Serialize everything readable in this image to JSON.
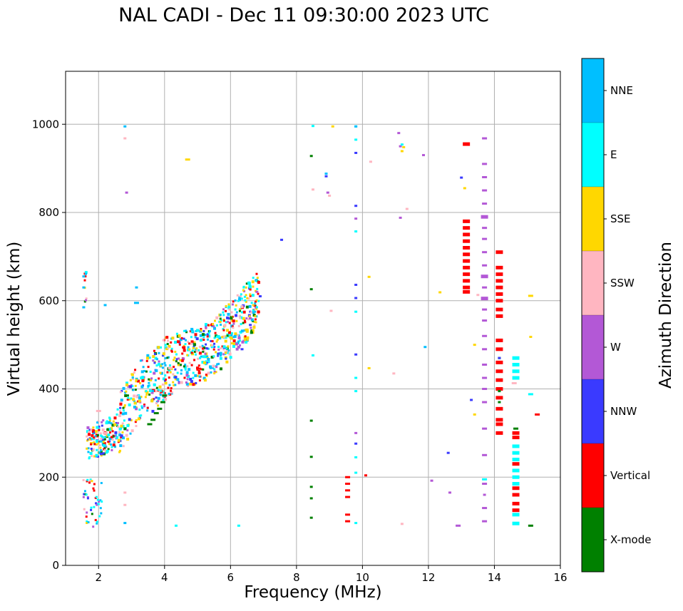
{
  "chart_data": {
    "type": "scatter",
    "title": "NAL CADI - Dec 11 09:30:00 2023 UTC",
    "xlabel": "Frequency (MHz)",
    "ylabel": "Virtual height (km)",
    "xlim": [
      1,
      16
    ],
    "ylim": [
      0,
      1120
    ],
    "xticks": [
      2,
      4,
      6,
      8,
      10,
      12,
      14,
      16
    ],
    "yticks": [
      0,
      200,
      400,
      600,
      800,
      1000
    ],
    "grid": true,
    "colorbar": {
      "label": "Azimuth Direction",
      "categories": [
        "X-mode",
        "Vertical",
        "NNW",
        "W",
        "SSW",
        "SSE",
        "E",
        "NNE"
      ],
      "colors": [
        "#008000",
        "#ff0000",
        "#3a3aff",
        "#b358d6",
        "#ffb6c1",
        "#ffd700",
        "#00ffff",
        "#00bfff"
      ]
    },
    "series": [
      {
        "name": "Vertical",
        "color": "#ff0000",
        "points": [
          [
            13.15,
            955,
            3
          ],
          [
            13.15,
            780,
            3
          ],
          [
            13.15,
            765,
            3
          ],
          [
            13.15,
            750,
            3
          ],
          [
            13.15,
            735,
            3
          ],
          [
            13.15,
            720,
            3
          ],
          [
            13.15,
            705,
            3
          ],
          [
            13.15,
            690,
            3
          ],
          [
            13.15,
            675,
            3
          ],
          [
            13.15,
            660,
            3
          ],
          [
            13.15,
            645,
            3
          ],
          [
            13.15,
            630,
            3
          ],
          [
            13.15,
            620,
            3
          ],
          [
            14.15,
            710,
            3
          ],
          [
            14.15,
            675,
            3
          ],
          [
            14.15,
            660,
            3
          ],
          [
            14.15,
            645,
            3
          ],
          [
            14.15,
            630,
            3
          ],
          [
            14.15,
            615,
            3
          ],
          [
            14.15,
            600,
            3
          ],
          [
            14.15,
            580,
            3
          ],
          [
            14.15,
            565,
            3
          ],
          [
            14.15,
            510,
            3
          ],
          [
            14.15,
            490,
            3
          ],
          [
            14.15,
            460,
            3
          ],
          [
            14.15,
            440,
            3
          ],
          [
            14.15,
            420,
            3
          ],
          [
            14.15,
            400,
            3
          ],
          [
            14.15,
            380,
            3
          ],
          [
            14.15,
            355,
            3
          ],
          [
            14.15,
            330,
            3
          ],
          [
            14.15,
            320,
            3
          ],
          [
            14.15,
            300,
            3
          ],
          [
            14.65,
            300,
            3
          ],
          [
            14.65,
            290,
            3
          ],
          [
            14.65,
            230,
            3
          ],
          [
            14.65,
            175,
            3
          ],
          [
            14.65,
            160,
            3
          ],
          [
            14.65,
            140,
            3
          ],
          [
            14.65,
            125,
            3
          ],
          [
            9.55,
            200,
            2
          ],
          [
            9.55,
            185,
            2
          ],
          [
            9.55,
            170,
            2
          ],
          [
            9.55,
            155,
            2
          ],
          [
            9.55,
            115,
            2
          ],
          [
            9.55,
            100,
            2
          ],
          [
            15.3,
            342,
            2
          ],
          [
            10.1,
            204,
            1
          ]
        ]
      },
      {
        "name": "X-mode",
        "color": "#008000",
        "points": [
          [
            3.55,
            320,
            2
          ],
          [
            3.65,
            330,
            2
          ],
          [
            3.75,
            345,
            2
          ],
          [
            3.85,
            355,
            2
          ],
          [
            3.95,
            370,
            2
          ],
          [
            4.0,
            385,
            2
          ],
          [
            8.45,
            928,
            1
          ],
          [
            8.45,
            626,
            1
          ],
          [
            8.45,
            328,
            1
          ],
          [
            8.45,
            246,
            1
          ],
          [
            8.45,
            178,
            1
          ],
          [
            8.45,
            152,
            1
          ],
          [
            8.45,
            108,
            1
          ],
          [
            14.65,
            310,
            2
          ],
          [
            15.1,
            90,
            2
          ],
          [
            14.15,
            470,
            1
          ],
          [
            14.15,
            395,
            1
          ],
          [
            14.15,
            370,
            1
          ]
        ]
      },
      {
        "name": "NNW",
        "color": "#3a3aff",
        "points": [
          [
            8.9,
            882,
            1
          ],
          [
            9.8,
            935,
            1
          ],
          [
            9.8,
            815,
            1
          ],
          [
            9.8,
            636,
            1
          ],
          [
            9.8,
            606,
            1
          ],
          [
            9.8,
            478,
            1
          ],
          [
            9.8,
            276,
            1
          ],
          [
            13.0,
            879,
            1
          ],
          [
            12.6,
            255,
            1
          ],
          [
            13.3,
            375,
            1
          ],
          [
            14.15,
            470,
            1
          ],
          [
            6.35,
            490,
            1
          ],
          [
            6.6,
            545,
            1
          ],
          [
            6.9,
            610,
            1
          ],
          [
            7.55,
            738,
            1
          ]
        ]
      },
      {
        "name": "W",
        "color": "#b358d6",
        "points": [
          [
            11.1,
            980,
            1
          ],
          [
            11.15,
            950,
            1
          ],
          [
            11.15,
            788,
            1
          ],
          [
            11.85,
            930,
            1
          ],
          [
            8.95,
            845,
            1
          ],
          [
            9.8,
            786,
            1
          ],
          [
            9.8,
            300,
            1
          ],
          [
            13.7,
            968,
            2
          ],
          [
            13.7,
            910,
            2
          ],
          [
            13.7,
            880,
            2
          ],
          [
            13.7,
            850,
            2
          ],
          [
            13.7,
            820,
            2
          ],
          [
            13.7,
            790,
            3
          ],
          [
            13.7,
            765,
            2
          ],
          [
            13.7,
            740,
            2
          ],
          [
            13.7,
            710,
            2
          ],
          [
            13.7,
            680,
            2
          ],
          [
            13.7,
            655,
            3
          ],
          [
            13.7,
            630,
            2
          ],
          [
            13.7,
            605,
            3
          ],
          [
            13.7,
            580,
            2
          ],
          [
            13.7,
            555,
            2
          ],
          [
            13.7,
            520,
            2
          ],
          [
            13.7,
            490,
            2
          ],
          [
            13.7,
            455,
            2
          ],
          [
            13.7,
            425,
            2
          ],
          [
            13.7,
            400,
            2
          ],
          [
            13.7,
            370,
            2
          ],
          [
            13.7,
            310,
            2
          ],
          [
            13.7,
            250,
            2
          ],
          [
            13.7,
            185,
            2
          ],
          [
            13.7,
            160,
            1
          ],
          [
            13.7,
            130,
            2
          ],
          [
            13.7,
            100,
            2
          ],
          [
            12.9,
            90,
            2
          ],
          [
            12.1,
            192,
            1
          ],
          [
            12.65,
            165,
            1
          ],
          [
            2.85,
            845,
            1
          ],
          [
            6.6,
            560,
            1
          ],
          [
            6.8,
            620,
            1
          ]
        ]
      },
      {
        "name": "SSW",
        "color": "#ffb6c1",
        "points": [
          [
            8.5,
            852,
            1
          ],
          [
            9.0,
            838,
            1
          ],
          [
            9.05,
            577,
            1
          ],
          [
            10.25,
            915,
            1
          ],
          [
            10.95,
            435,
            1
          ],
          [
            11.2,
            94,
            1
          ],
          [
            11.35,
            808,
            1
          ],
          [
            13.5,
            613,
            1
          ],
          [
            14.6,
            413,
            2
          ],
          [
            2.8,
            968,
            1
          ],
          [
            2.8,
            165,
            1
          ],
          [
            2.8,
            137,
            1
          ],
          [
            2.0,
            350,
            2
          ],
          [
            2.2,
            300,
            2
          ]
        ]
      },
      {
        "name": "SSE",
        "color": "#ffd700",
        "points": [
          [
            13.1,
            855,
            1
          ],
          [
            12.35,
            619,
            1
          ],
          [
            10.2,
            654,
            1
          ],
          [
            10.2,
            447,
            1
          ],
          [
            13.4,
            500,
            1
          ],
          [
            13.4,
            342,
            1
          ],
          [
            15.1,
            611,
            2
          ],
          [
            15.1,
            518,
            1
          ],
          [
            11.2,
            939,
            1
          ],
          [
            11.25,
            948,
            1
          ],
          [
            9.1,
            995,
            1
          ],
          [
            4.7,
            920,
            2
          ]
        ]
      },
      {
        "name": "E",
        "color": "#00ffff",
        "points": [
          [
            14.65,
            470,
            3
          ],
          [
            14.65,
            455,
            3
          ],
          [
            14.65,
            440,
            3
          ],
          [
            14.65,
            425,
            3
          ],
          [
            14.65,
            270,
            3
          ],
          [
            14.65,
            255,
            3
          ],
          [
            14.65,
            240,
            3
          ],
          [
            14.65,
            215,
            3
          ],
          [
            14.65,
            200,
            3
          ],
          [
            14.65,
            185,
            3
          ],
          [
            14.65,
            115,
            3
          ],
          [
            14.65,
            95,
            3
          ],
          [
            8.5,
            996,
            1
          ],
          [
            8.5,
            476,
            1
          ],
          [
            9.8,
            995,
            1
          ],
          [
            9.8,
            965,
            1
          ],
          [
            9.8,
            757,
            1
          ],
          [
            9.8,
            575,
            1
          ],
          [
            9.8,
            425,
            1
          ],
          [
            9.8,
            395,
            1
          ],
          [
            9.8,
            245,
            1
          ],
          [
            9.8,
            210,
            1
          ],
          [
            9.8,
            96,
            1
          ],
          [
            15.1,
            388,
            2
          ],
          [
            6.25,
            90,
            1
          ],
          [
            4.35,
            90,
            1
          ],
          [
            11.2,
            954,
            1
          ],
          [
            13.7,
            195,
            2
          ]
        ]
      },
      {
        "name": "NNE",
        "color": "#00bfff",
        "points": [
          [
            1.55,
            655,
            1
          ],
          [
            1.55,
            630,
            1
          ],
          [
            2.8,
            995,
            1
          ],
          [
            2.8,
            96,
            1
          ],
          [
            3.15,
            630,
            1
          ],
          [
            3.15,
            595,
            2
          ],
          [
            11.9,
            495,
            1
          ],
          [
            8.9,
            888,
            1
          ],
          [
            9.8,
            995,
            1
          ],
          [
            1.55,
            585,
            1
          ],
          [
            2.2,
            590,
            1
          ]
        ]
      }
    ]
  }
}
